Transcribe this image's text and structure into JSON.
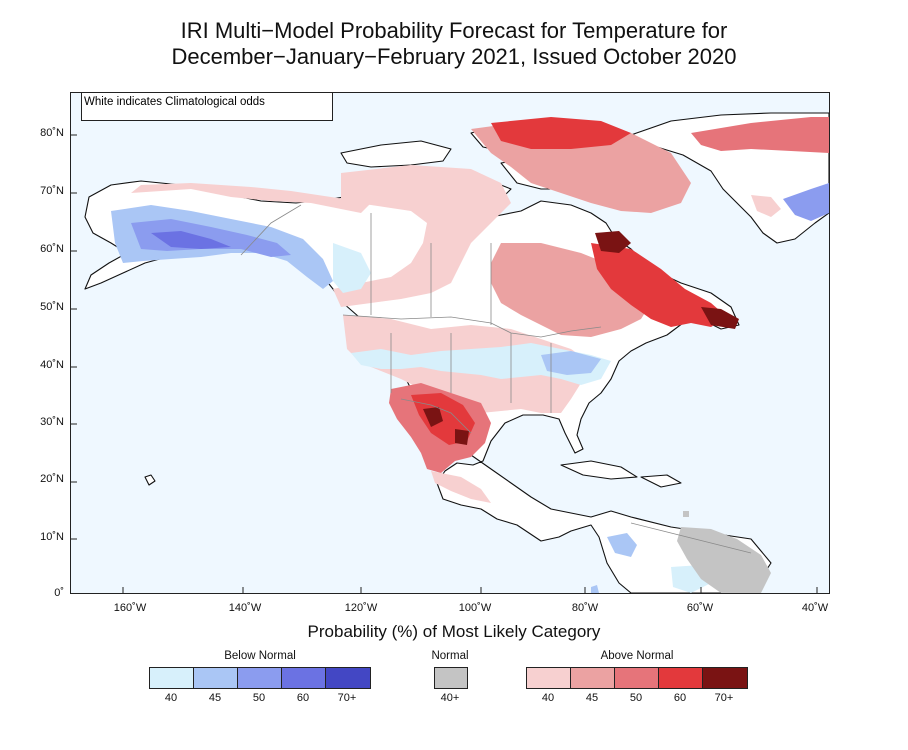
{
  "title_line1": "IRI Multi−Model Probability Forecast for Temperature for",
  "title_line2": "December−January−February 2021, Issued October 2020",
  "note": "White indicates Climatological odds",
  "lat_labels": [
    "80˚N",
    "70˚N",
    "60˚N",
    "50˚N",
    "40˚N",
    "30˚N",
    "20˚N",
    "10˚N",
    "0˚"
  ],
  "lon_labels": [
    "160˚W",
    "140˚W",
    "120˚W",
    "100˚W",
    "80˚W",
    "60˚W",
    "40˚W"
  ],
  "legend": {
    "title": "Probability (%) of Most Likely Category",
    "below_label": "Below Normal",
    "normal_label": "Normal",
    "above_label": "Above Normal",
    "below": [
      {
        "tick": "40",
        "color": "#d7f0fb"
      },
      {
        "tick": "45",
        "color": "#aac6f5"
      },
      {
        "tick": "50",
        "color": "#8b9cef"
      },
      {
        "tick": "60",
        "color": "#6b72e3"
      },
      {
        "tick": "70+",
        "color": "#4347c4"
      }
    ],
    "normal": [
      {
        "tick": "40+",
        "color": "#c4c4c4"
      }
    ],
    "above": [
      {
        "tick": "40",
        "color": "#f7d0d0"
      },
      {
        "tick": "45",
        "color": "#eba2a2"
      },
      {
        "tick": "50",
        "color": "#e6747a"
      },
      {
        "tick": "60",
        "color": "#e3393c"
      },
      {
        "tick": "70+",
        "color": "#7a1313"
      }
    ]
  },
  "map_colors": {
    "ocean": "#eff8ff",
    "land_climatology": "#ffffff",
    "coastline": "#111111",
    "border": "#8a8a8a"
  }
}
